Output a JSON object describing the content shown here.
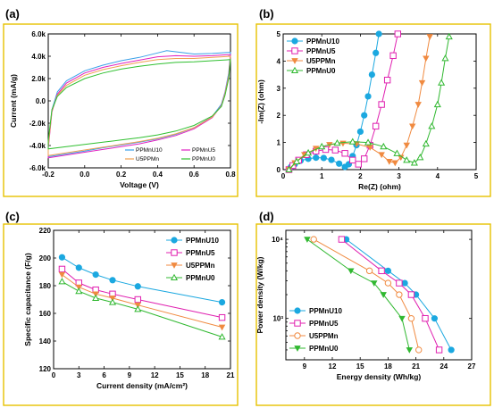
{
  "colors": {
    "frame": "#e6c200"
  },
  "chart_data": [
    {
      "label": "(a)",
      "type": "line",
      "xlabel": "Voltage (V)",
      "ylabel": "Current (mA/g)",
      "xlim": [
        -0.2,
        0.8
      ],
      "ylim": [
        -6000,
        6000
      ],
      "xticks": [
        -0.2,
        0.0,
        0.2,
        0.4,
        0.6,
        0.8
      ],
      "xtick_labels": [
        "-0.2",
        "0.0",
        "0.2",
        "0.4",
        "0.6",
        "0.8"
      ],
      "yticks": [
        -6000,
        -4000,
        -2000,
        0,
        2000,
        4000,
        6000
      ],
      "ytick_labels": [
        "-6.0k",
        "-4.0k",
        "-2.0k",
        "0.0",
        "2.0k",
        "4.0k",
        "6.0k"
      ],
      "legend_position": "bottom-right",
      "series": [
        {
          "name": "PPMnU10",
          "color": "#3aa0e8",
          "upper": [
            [
              -0.2,
              -4000
            ],
            [
              -0.18,
              -800
            ],
            [
              -0.15,
              800
            ],
            [
              -0.1,
              1800
            ],
            [
              0,
              2700
            ],
            [
              0.1,
              3200
            ],
            [
              0.2,
              3600
            ],
            [
              0.3,
              3900
            ],
            [
              0.4,
              4300
            ],
            [
              0.45,
              4500
            ],
            [
              0.5,
              4400
            ],
            [
              0.6,
              4200
            ],
            [
              0.7,
              4250
            ],
            [
              0.8,
              4350
            ]
          ],
          "lower": [
            [
              0.8,
              4350
            ],
            [
              0.79,
              2500
            ],
            [
              0.77,
              800
            ],
            [
              0.75,
              -300
            ],
            [
              0.7,
              -1400
            ],
            [
              0.6,
              -2400
            ],
            [
              0.5,
              -3000
            ],
            [
              0.4,
              -3400
            ],
            [
              0.3,
              -3700
            ],
            [
              0.2,
              -3950
            ],
            [
              0.1,
              -4200
            ],
            [
              0,
              -4500
            ],
            [
              -0.1,
              -4750
            ],
            [
              -0.2,
              -5000
            ]
          ]
        },
        {
          "name": "PPMnU5",
          "color": "#e020c0",
          "upper": [
            [
              -0.2,
              -4300
            ],
            [
              -0.18,
              -1000
            ],
            [
              -0.15,
              600
            ],
            [
              -0.1,
              1600
            ],
            [
              0,
              2500
            ],
            [
              0.1,
              3000
            ],
            [
              0.2,
              3350
            ],
            [
              0.3,
              3650
            ],
            [
              0.4,
              3950
            ],
            [
              0.5,
              4050
            ],
            [
              0.6,
              4000
            ],
            [
              0.7,
              4050
            ],
            [
              0.8,
              4150
            ]
          ],
          "lower": [
            [
              0.8,
              4150
            ],
            [
              0.79,
              2300
            ],
            [
              0.77,
              700
            ],
            [
              0.75,
              -400
            ],
            [
              0.7,
              -1500
            ],
            [
              0.6,
              -2500
            ],
            [
              0.5,
              -3100
            ],
            [
              0.4,
              -3500
            ],
            [
              0.3,
              -3850
            ],
            [
              0.2,
              -4100
            ],
            [
              0.1,
              -4350
            ],
            [
              0,
              -4600
            ],
            [
              -0.1,
              -4850
            ],
            [
              -0.2,
              -5100
            ]
          ]
        },
        {
          "name": "U5PPMn",
          "color": "#f0a050",
          "upper": [
            [
              -0.2,
              -4100
            ],
            [
              -0.18,
              -900
            ],
            [
              -0.15,
              500
            ],
            [
              -0.1,
              1400
            ],
            [
              0,
              2300
            ],
            [
              0.1,
              2800
            ],
            [
              0.2,
              3150
            ],
            [
              0.3,
              3450
            ],
            [
              0.4,
              3700
            ],
            [
              0.5,
              3800
            ],
            [
              0.6,
              3800
            ],
            [
              0.7,
              3900
            ],
            [
              0.8,
              4000
            ]
          ],
          "lower": [
            [
              0.8,
              4000
            ],
            [
              0.79,
              2200
            ],
            [
              0.77,
              650
            ],
            [
              0.75,
              -450
            ],
            [
              0.7,
              -1450
            ],
            [
              0.6,
              -2400
            ],
            [
              0.5,
              -2950
            ],
            [
              0.4,
              -3350
            ],
            [
              0.3,
              -3650
            ],
            [
              0.2,
              -3900
            ],
            [
              0.1,
              -4150
            ],
            [
              0,
              -4400
            ],
            [
              -0.1,
              -4650
            ],
            [
              -0.2,
              -4900
            ]
          ]
        },
        {
          "name": "PPMnU0",
          "color": "#30c030",
          "upper": [
            [
              -0.2,
              -3600
            ],
            [
              -0.18,
              -800
            ],
            [
              -0.15,
              400
            ],
            [
              -0.1,
              1200
            ],
            [
              0,
              2000
            ],
            [
              0.1,
              2500
            ],
            [
              0.2,
              2850
            ],
            [
              0.3,
              3100
            ],
            [
              0.4,
              3300
            ],
            [
              0.5,
              3450
            ],
            [
              0.6,
              3500
            ],
            [
              0.7,
              3600
            ],
            [
              0.8,
              3700
            ]
          ],
          "lower": [
            [
              0.8,
              3700
            ],
            [
              0.79,
              2000
            ],
            [
              0.77,
              500
            ],
            [
              0.75,
              -500
            ],
            [
              0.7,
              -1350
            ],
            [
              0.6,
              -2200
            ],
            [
              0.5,
              -2700
            ],
            [
              0.4,
              -3050
            ],
            [
              0.3,
              -3300
            ],
            [
              0.2,
              -3500
            ],
            [
              0.1,
              -3700
            ],
            [
              0,
              -3900
            ],
            [
              -0.1,
              -4100
            ],
            [
              -0.2,
              -4300
            ]
          ]
        }
      ]
    },
    {
      "label": "(b)",
      "type": "line",
      "xlabel": "Re(Z) (ohm)",
      "ylabel": "-Im(Z) (ohm)",
      "xlim": [
        0,
        5
      ],
      "ylim": [
        0,
        5
      ],
      "xticks": [
        0,
        1,
        2,
        3,
        4,
        5
      ],
      "xtick_labels": [
        "0",
        "1",
        "2",
        "3",
        "4",
        "5"
      ],
      "yticks": [
        0,
        1,
        2,
        3,
        4,
        5
      ],
      "ytick_labels": [
        "0",
        "1",
        "2",
        "3",
        "4",
        "5"
      ],
      "legend_position": "top-left",
      "series": [
        {
          "name": "PPMnU10",
          "color": "#1ba8e0",
          "marker": "circle-filled",
          "points": [
            [
              0.15,
              0
            ],
            [
              0.2,
              0.1
            ],
            [
              0.3,
              0.2
            ],
            [
              0.45,
              0.33
            ],
            [
              0.65,
              0.4
            ],
            [
              0.85,
              0.44
            ],
            [
              1.05,
              0.43
            ],
            [
              1.25,
              0.36
            ],
            [
              1.45,
              0.22
            ],
            [
              1.6,
              0.1
            ],
            [
              1.7,
              0.2
            ],
            [
              1.8,
              0.5
            ],
            [
              1.9,
              0.9
            ],
            [
              2.0,
              1.4
            ],
            [
              2.1,
              2.0
            ],
            [
              2.2,
              2.7
            ],
            [
              2.3,
              3.5
            ],
            [
              2.4,
              4.3
            ],
            [
              2.48,
              5.0
            ]
          ]
        },
        {
          "name": "PPMnU5",
          "color": "#e020b0",
          "marker": "square-open",
          "points": [
            [
              0.15,
              0
            ],
            [
              0.25,
              0.15
            ],
            [
              0.4,
              0.35
            ],
            [
              0.6,
              0.55
            ],
            [
              0.85,
              0.68
            ],
            [
              1.1,
              0.74
            ],
            [
              1.35,
              0.72
            ],
            [
              1.6,
              0.6
            ],
            [
              1.8,
              0.35
            ],
            [
              1.95,
              0.2
            ],
            [
              2.1,
              0.4
            ],
            [
              2.25,
              0.9
            ],
            [
              2.4,
              1.6
            ],
            [
              2.55,
              2.4
            ],
            [
              2.7,
              3.3
            ],
            [
              2.85,
              4.2
            ],
            [
              2.97,
              5.0
            ]
          ]
        },
        {
          "name": "U5PPMn",
          "color": "#f08a40",
          "marker": "triangle-down-filled",
          "points": [
            [
              0.15,
              0
            ],
            [
              0.3,
              0.25
            ],
            [
              0.55,
              0.55
            ],
            [
              0.85,
              0.78
            ],
            [
              1.2,
              0.92
            ],
            [
              1.55,
              0.97
            ],
            [
              1.9,
              0.95
            ],
            [
              2.25,
              0.82
            ],
            [
              2.55,
              0.55
            ],
            [
              2.75,
              0.3
            ],
            [
              2.9,
              0.25
            ],
            [
              3.05,
              0.45
            ],
            [
              3.2,
              0.9
            ],
            [
              3.35,
              1.6
            ],
            [
              3.5,
              2.4
            ],
            [
              3.6,
              3.2
            ],
            [
              3.7,
              4.1
            ],
            [
              3.8,
              4.9
            ]
          ]
        },
        {
          "name": "PPMnU0",
          "color": "#30b830",
          "marker": "triangle-open",
          "points": [
            [
              0.15,
              0
            ],
            [
              0.35,
              0.3
            ],
            [
              0.65,
              0.62
            ],
            [
              1.0,
              0.85
            ],
            [
              1.4,
              0.98
            ],
            [
              1.8,
              1.03
            ],
            [
              2.2,
              1.0
            ],
            [
              2.6,
              0.85
            ],
            [
              2.95,
              0.6
            ],
            [
              3.2,
              0.35
            ],
            [
              3.4,
              0.25
            ],
            [
              3.55,
              0.45
            ],
            [
              3.7,
              0.95
            ],
            [
              3.85,
              1.6
            ],
            [
              4.0,
              2.4
            ],
            [
              4.1,
              3.2
            ],
            [
              4.2,
              4.1
            ],
            [
              4.3,
              4.9
            ]
          ]
        }
      ]
    },
    {
      "label": "(c)",
      "type": "line",
      "xlabel": "Current density (mA/cm²)",
      "ylabel": "Specific capacitance (F/g)",
      "xlim": [
        0,
        21
      ],
      "ylim": [
        120,
        220
      ],
      "xticks": [
        0,
        3,
        6,
        9,
        12,
        15,
        18,
        21
      ],
      "xtick_labels": [
        "0",
        "3",
        "6",
        "9",
        "12",
        "15",
        "18",
        "21"
      ],
      "yticks": [
        120,
        140,
        160,
        180,
        200,
        220
      ],
      "ytick_labels": [
        "120",
        "140",
        "160",
        "180",
        "200",
        "220"
      ],
      "legend_position": "top-right",
      "series": [
        {
          "name": "PPMnU10",
          "color": "#1ba8e0",
          "marker": "circle-filled",
          "x": [
            1,
            3,
            5,
            7,
            10,
            20
          ],
          "y": [
            200.5,
            193,
            188,
            184,
            179.5,
            168
          ]
        },
        {
          "name": "PPMnU5",
          "color": "#e020b0",
          "marker": "square-open",
          "x": [
            1,
            3,
            5,
            7,
            10,
            20
          ],
          "y": [
            192,
            182,
            177,
            174,
            170,
            157
          ]
        },
        {
          "name": "U5PPMn",
          "color": "#f08a40",
          "marker": "triangle-down-filled",
          "x": [
            1,
            3,
            5,
            7,
            10,
            20
          ],
          "y": [
            188,
            179,
            174,
            171,
            166,
            150
          ]
        },
        {
          "name": "PPMnU0",
          "color": "#30b830",
          "marker": "triangle-open",
          "x": [
            1,
            3,
            5,
            7,
            10,
            20
          ],
          "y": [
            183,
            176,
            171,
            168,
            163,
            143
          ]
        }
      ]
    },
    {
      "label": "(d)",
      "type": "line",
      "xlabel": "Energy density (Wh/kg)",
      "ylabel": "Power density (W/kg)",
      "xlim": [
        7,
        27
      ],
      "ylim": [
        300,
        13000
      ],
      "ylog": true,
      "xticks": [
        9,
        12,
        15,
        18,
        21,
        24,
        27
      ],
      "xtick_labels": [
        "9",
        "12",
        "15",
        "18",
        "21",
        "24",
        "27"
      ],
      "yticks": [
        1000,
        10000
      ],
      "ytick_labels": [
        "10³",
        "10⁴"
      ],
      "legend_position": "bottom-left",
      "series": [
        {
          "name": "PPMnU10",
          "color": "#1ba8e0",
          "marker": "circle-filled",
          "x": [
            13.5,
            18.0,
            19.8,
            21.0,
            23.0,
            24.8
          ],
          "y": [
            10000,
            4000,
            2800,
            2000,
            1000,
            400
          ]
        },
        {
          "name": "PPMnU5",
          "color": "#e020b0",
          "marker": "square-open",
          "x": [
            13.0,
            17.3,
            19.2,
            20.5,
            22.0,
            23.5
          ],
          "y": [
            10000,
            4000,
            2800,
            2000,
            1000,
            400
          ]
        },
        {
          "name": "U5PPMn",
          "color": "#f08a40",
          "marker": "circle-open",
          "x": [
            10.0,
            16.0,
            18.0,
            19.2,
            20.5,
            21.3
          ],
          "y": [
            10000,
            4000,
            2800,
            2000,
            1000,
            400
          ]
        },
        {
          "name": "PPMnU0",
          "color": "#30b830",
          "marker": "triangle-down-filled",
          "x": [
            9.3,
            14.0,
            16.5,
            17.5,
            19.5,
            20.3
          ],
          "y": [
            10000,
            4000,
            2800,
            2000,
            1000,
            400
          ]
        }
      ]
    }
  ]
}
